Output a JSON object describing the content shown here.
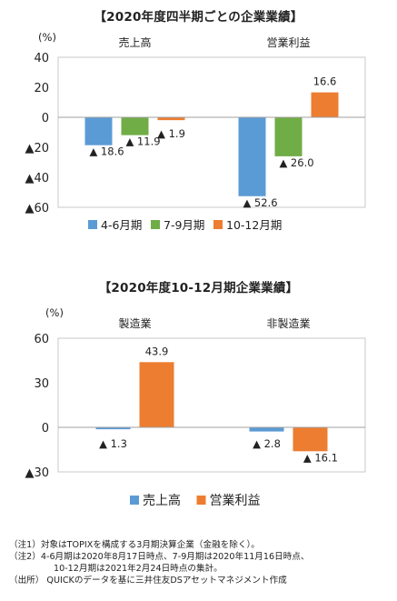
{
  "chart_data": [
    {
      "type": "bar",
      "title": "【2020年度四半期ごとの企業業績】",
      "unit_label": "(%)",
      "categories": [
        "売上高",
        "営業利益"
      ],
      "series": [
        {
          "name": "4-6月期",
          "color": "#5b9bd5",
          "values": [
            -18.6,
            -52.6
          ]
        },
        {
          "name": "7-9月期",
          "color": "#70ad47",
          "values": [
            -11.9,
            -26.0
          ]
        },
        {
          "name": "10-12月期",
          "color": "#ed7d31",
          "values": [
            -1.9,
            16.6
          ]
        }
      ],
      "value_labels": [
        [
          "▲ 18.6",
          "▲ 11.9",
          "▲ 1.9"
        ],
        [
          "▲ 52.6",
          "▲ 26.0",
          "16.6"
        ]
      ],
      "ylim": [
        -60,
        40
      ],
      "yticks": [
        40,
        20,
        0,
        -20,
        -40,
        -60
      ],
      "ytick_labels": [
        "40",
        "20",
        "0",
        "▲20",
        "▲40",
        "▲60"
      ],
      "legend_position": "bottom"
    },
    {
      "type": "bar",
      "title": "【2020年度10-12月期企業業績】",
      "unit_label": "(%)",
      "categories": [
        "製造業",
        "非製造業"
      ],
      "series": [
        {
          "name": "売上高",
          "color": "#5b9bd5",
          "values": [
            -1.3,
            -2.8
          ]
        },
        {
          "name": "営業利益",
          "color": "#ed7d31",
          "values": [
            43.9,
            -16.1
          ]
        }
      ],
      "value_labels": [
        [
          "▲ 1.3",
          "43.9"
        ],
        [
          "▲ 2.8",
          "▲ 16.1"
        ]
      ],
      "ylim": [
        -30,
        60
      ],
      "yticks": [
        60,
        30,
        0,
        -30
      ],
      "ytick_labels": [
        "60",
        "30",
        "0",
        "▲30"
      ],
      "legend_position": "bottom"
    }
  ],
  "notes": {
    "n1": "（注1）対象はTOPIXを構成する3月期決算企業（金融を除く）。",
    "n2": "（注2）4-6月期は2020年8月17日時点、7-9月期は2020年11月16日時点、",
    "n2b": "10-12月期は2021年2月24日時点の集計。",
    "n3": "（出所） QUICKのデータを基に三井住友DSアセットマネジメント作成"
  }
}
